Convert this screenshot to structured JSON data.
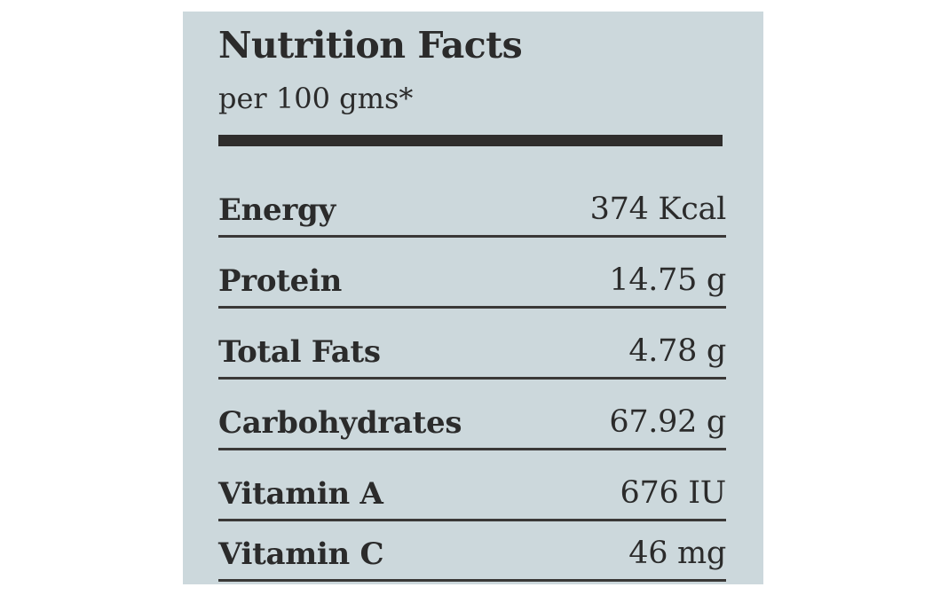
{
  "header": {
    "title": "Nutrition Facts",
    "subtitle": "per 100 gms*"
  },
  "nutrients": [
    {
      "label": "Energy",
      "value": "374 Kcal"
    },
    {
      "label": "Protein",
      "value": "14.75 g"
    },
    {
      "label": "Total Fats",
      "value": "4.78 g"
    },
    {
      "label": "Carbohydrates",
      "value": "67.92 g"
    },
    {
      "label": "Vitamin A",
      "value": "676 IU"
    },
    {
      "label": "Vitamin C",
      "value": "46 mg"
    }
  ],
  "colors": {
    "panel_background": "#ccd8dc",
    "text": "#2b2b2b",
    "rule": "#2f2d2c"
  }
}
